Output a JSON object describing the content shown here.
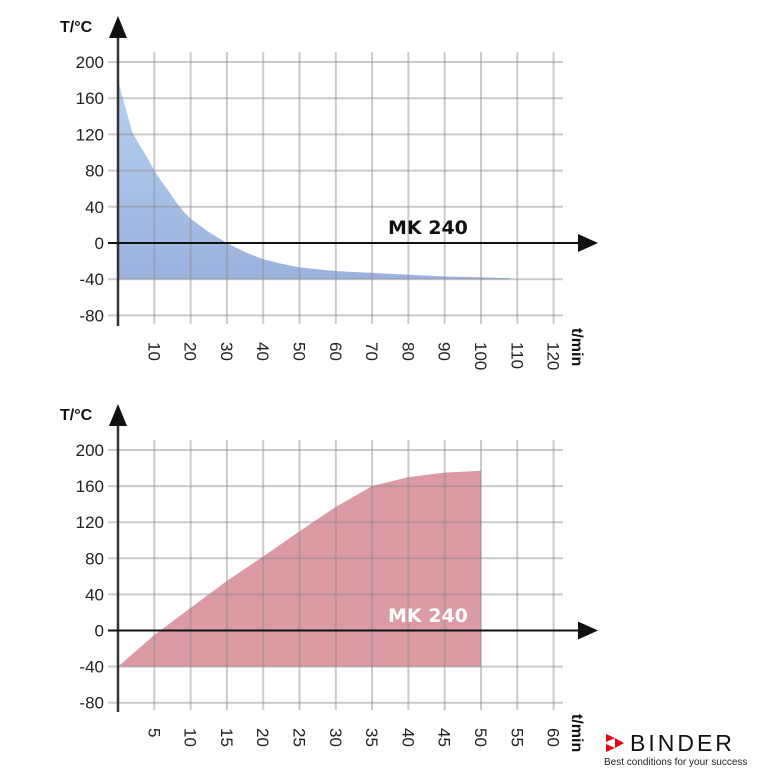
{
  "chart_data": [
    {
      "type": "area",
      "title": "",
      "series_label": "MK 240",
      "ylabel": "T/°C",
      "xlabel": "t/min",
      "ylim": [
        -80,
        200
      ],
      "xlim": [
        0,
        120
      ],
      "grid": true,
      "y_ticks": [
        200,
        160,
        120,
        80,
        40,
        0,
        -40,
        -80
      ],
      "x_ticks": [
        10,
        20,
        30,
        40,
        50,
        60,
        70,
        80,
        90,
        100,
        110,
        120
      ],
      "fill_color": "#a8c0e6",
      "baseline": -40,
      "x": [
        0,
        2,
        4,
        6,
        8,
        10,
        12,
        14,
        16,
        18,
        20,
        25,
        30,
        35,
        40,
        45,
        50,
        55,
        60,
        70,
        80,
        90,
        100,
        108
      ],
      "values": [
        180,
        150,
        122,
        108,
        95,
        80,
        68,
        57,
        45,
        35,
        27,
        12,
        0,
        -10,
        -18,
        -23,
        -27,
        -29,
        -31,
        -33,
        -35,
        -37,
        -38,
        -39
      ]
    },
    {
      "type": "area",
      "title": "",
      "series_label": "MK 240",
      "ylabel": "T/°C",
      "xlabel": "t/min",
      "ylim": [
        -80,
        200
      ],
      "xlim": [
        0,
        60
      ],
      "grid": true,
      "y_ticks": [
        200,
        160,
        120,
        80,
        40,
        0,
        -40,
        -80
      ],
      "x_ticks": [
        5,
        10,
        15,
        20,
        25,
        30,
        35,
        40,
        45,
        50,
        55,
        60
      ],
      "fill_color": "#dc9aa5",
      "baseline": -40,
      "x": [
        0,
        5,
        10,
        15,
        20,
        25,
        30,
        35,
        40,
        45,
        50
      ],
      "values": [
        -40,
        -5,
        25,
        55,
        82,
        110,
        137,
        160,
        170,
        175,
        177
      ]
    }
  ],
  "brand": {
    "name": "BINDER",
    "tagline": "Best conditions for your success",
    "accent": "#e30613"
  }
}
